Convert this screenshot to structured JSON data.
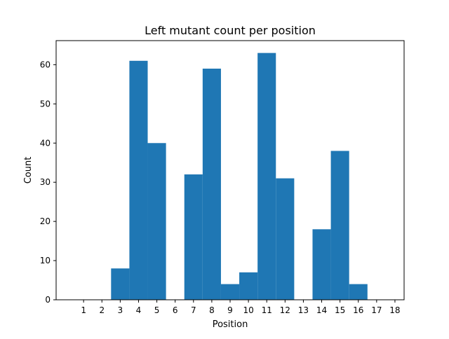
{
  "chart_data": {
    "type": "bar",
    "title": "Left mutant count per position",
    "xlabel": "Position",
    "ylabel": "Count",
    "categories": [
      "1",
      "2",
      "3",
      "4",
      "5",
      "6",
      "7",
      "8",
      "9",
      "10",
      "11",
      "12",
      "13",
      "14",
      "15",
      "16",
      "17",
      "18"
    ],
    "values": [
      0,
      0,
      8,
      61,
      40,
      0,
      32,
      59,
      4,
      7,
      63,
      31,
      0,
      18,
      38,
      4,
      0,
      0
    ],
    "xlim": [
      -0.5,
      18.5
    ],
    "ylim": [
      0,
      66.15
    ],
    "yticks": [
      0,
      10,
      20,
      30,
      40,
      50,
      60
    ],
    "grid": false,
    "legend": "none",
    "bar_color": "#1f77b4"
  }
}
